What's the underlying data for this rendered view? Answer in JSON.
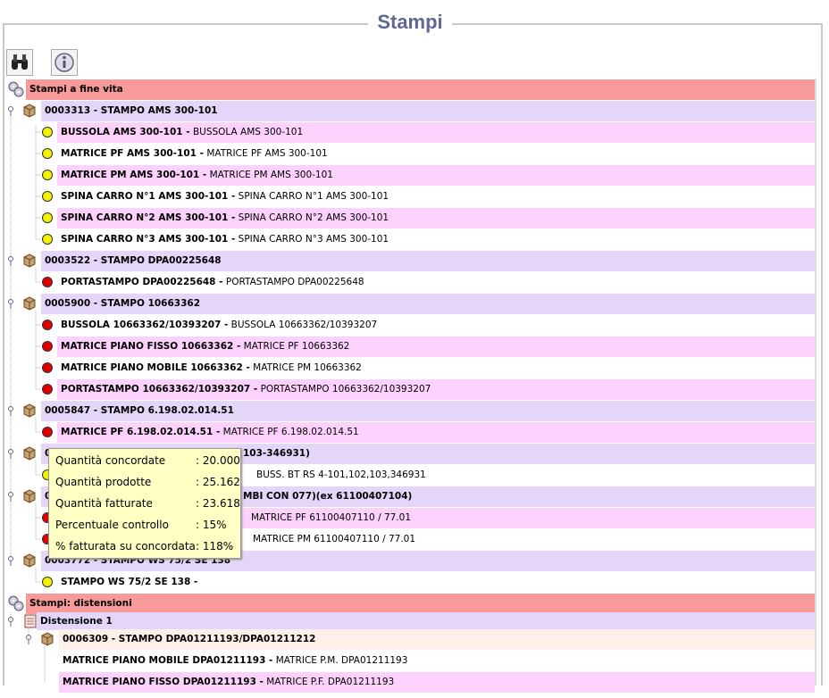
{
  "header": {
    "title": "Stampi"
  },
  "tree": {
    "rows": [
      {
        "bold": "Stampi a fine vita"
      },
      {
        "bold": "0003313 -  STAMPO AMS 300-101"
      },
      {
        "bold": "BUSSOLA AMS 300-101 -",
        "text": "BUSSOLA AMS 300-101"
      },
      {
        "bold": "MATRICE PF AMS 300-101 -",
        "text": "MATRICE PF AMS 300-101"
      },
      {
        "bold": "MATRICE PM AMS 300-101 -",
        "text": "MATRICE PM AMS 300-101"
      },
      {
        "bold": "SPINA CARRO N°1 AMS 300-101 -",
        "text": "SPINA CARRO N°1 AMS 300-101"
      },
      {
        "bold": "SPINA CARRO N°2 AMS 300-101 -",
        "text": "SPINA CARRO N°2 AMS 300-101"
      },
      {
        "bold": "SPINA CARRO N°3 AMS 300-101 -",
        "text": "SPINA CARRO N°3 AMS 300-101"
      },
      {
        "bold": "0003522 -  STAMPO DPA00225648"
      },
      {
        "bold": "PORTASTAMPO DPA00225648 -",
        "text": "PORTASTAMPO DPA00225648"
      },
      {
        "bold": "0005900 -  STAMPO 10663362"
      },
      {
        "bold": "BUSSOLA 10663362/10393207 -",
        "text": "BUSSOLA 10663362/10393207"
      },
      {
        "bold": "MATRICE PIANO FISSO 10663362 -",
        "text": "MATRICE PF 10663362"
      },
      {
        "bold": "MATRICE PIANO MOBILE 10663362 -",
        "text": "MATRICE PM 10663362"
      },
      {
        "bold": "PORTASTAMPO 10663362/10393207 -",
        "text": "PORTASTAMPO 10663362/10393207"
      },
      {
        "bold": "0005847 -  STAMPO 6.198.02.014.51"
      },
      {
        "bold": "MATRICE PF 6.198.02.014.51 -",
        "text": "MATRICE PF 6.198.02.014.51"
      },
      {
        "bold": "0",
        "right": "103-346931)"
      },
      {
        "right": "BUSS. BT RS 4-101,102,103,346931"
      },
      {
        "bold": "0",
        "right": "MBI CON 077)(ex 61100407104)"
      },
      {
        "right": "MATRICE PF 61100407110 / 77.01"
      },
      {
        "right": "MATRICE PM 61100407110 / 77.01"
      },
      {
        "bold": "0003772 -  STAMPO WS 75/2 SE 138"
      },
      {
        "bold": "STAMPO WS 75/2 SE 138 -"
      },
      {
        "bold": "Stampi: distensioni"
      },
      {
        "bold": "Distensione 1"
      },
      {
        "bold": "0006309 -  STAMPO DPA01211193/DPA01211212"
      },
      {
        "bold": "MATRICE PIANO MOBILE DPA01211193 -",
        "text": "MATRICE P.M. DPA01211193"
      },
      {
        "bold": "MATRICE PIANO FISSO DPA01211193 -",
        "text": "MATRICE P.F. DPA01211193"
      }
    ]
  },
  "tooltip": {
    "rows": [
      [
        "Quantità concordate",
        ": 20.000"
      ],
      [
        "Quantità prodotte",
        ": 25.162"
      ],
      [
        "Quantità fatturate",
        ": 23.618"
      ],
      [
        "Percentuale controllo",
        ": 15%"
      ],
      [
        "% fatturata su concordata",
        ": 118%"
      ]
    ]
  }
}
